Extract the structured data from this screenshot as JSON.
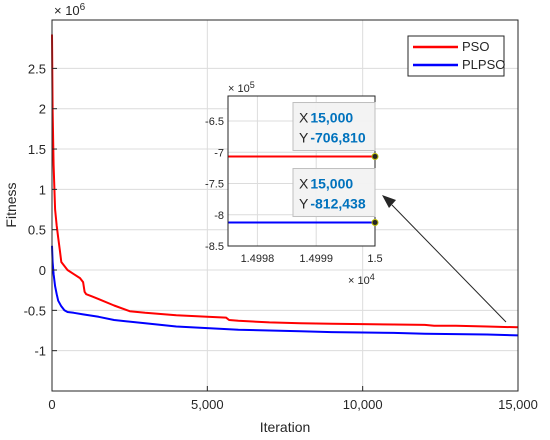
{
  "chart_data": {
    "type": "line",
    "xlabel": "Iteration",
    "ylabel": "Fitness",
    "xlim": [
      0,
      15000
    ],
    "ylim": [
      -1.5,
      3.1
    ],
    "y_exponent_label": "× 10^6",
    "x_ticks": [
      {
        "value": 0,
        "label": "0"
      },
      {
        "value": 5000,
        "label": "5,000"
      },
      {
        "value": 10000,
        "label": "10,000"
      },
      {
        "value": 15000,
        "label": "15,000"
      }
    ],
    "y_ticks": [
      {
        "value": 2.5,
        "label": "2.5"
      },
      {
        "value": 2,
        "label": "2"
      },
      {
        "value": 1.5,
        "label": "1.5"
      },
      {
        "value": 1,
        "label": "1"
      },
      {
        "value": 0.5,
        "label": "0.5"
      },
      {
        "value": 0,
        "label": "0"
      },
      {
        "value": -0.5,
        "label": "-0.5"
      },
      {
        "value": -1,
        "label": "-1"
      }
    ],
    "grid": true,
    "legend_position": "top-right",
    "series": [
      {
        "name": "PSO",
        "color": "#ff0000",
        "x": [
          0,
          20,
          50,
          100,
          150,
          200,
          250,
          300,
          400,
          500,
          700,
          900,
          1000,
          1050,
          1100,
          1300,
          1500,
          2000,
          2500,
          3000,
          4000,
          5000,
          5600,
          5700,
          6000,
          7000,
          8000,
          9000,
          10000,
          11000,
          12000,
          12300,
          13000,
          14000,
          15000
        ],
        "values": [
          2.92,
          2.0,
          1.3,
          0.75,
          0.55,
          0.4,
          0.25,
          0.1,
          0.05,
          0.0,
          -0.05,
          -0.1,
          -0.15,
          -0.27,
          -0.3,
          -0.33,
          -0.36,
          -0.44,
          -0.51,
          -0.53,
          -0.56,
          -0.58,
          -0.59,
          -0.62,
          -0.63,
          -0.65,
          -0.66,
          -0.665,
          -0.67,
          -0.675,
          -0.68,
          -0.69,
          -0.69,
          -0.7,
          -0.71
        ]
      },
      {
        "name": "PLPSO",
        "color": "#0000ff",
        "x": [
          0,
          20,
          50,
          100,
          150,
          200,
          300,
          400,
          500,
          700,
          1000,
          1500,
          2000,
          3000,
          4000,
          5000,
          6000,
          7000,
          8000,
          9000,
          10000,
          11000,
          12000,
          13000,
          14000,
          15000
        ],
        "values": [
          0.3,
          0.1,
          -0.05,
          -0.2,
          -0.3,
          -0.38,
          -0.45,
          -0.5,
          -0.52,
          -0.53,
          -0.55,
          -0.58,
          -0.62,
          -0.66,
          -0.7,
          -0.72,
          -0.74,
          -0.75,
          -0.76,
          -0.77,
          -0.775,
          -0.78,
          -0.79,
          -0.795,
          -0.8,
          -0.81
        ]
      }
    ],
    "inset": {
      "xlim": [
        1.49975,
        1.5
      ],
      "ylim": [
        -8.5,
        -6.1
      ],
      "y_exponent_label": "× 10^5",
      "x_exponent_label": "× 10^4",
      "x_ticks": [
        {
          "value": 1.4998,
          "label": "1.4998"
        },
        {
          "value": 1.4999,
          "label": "1.4999"
        },
        {
          "value": 1.5,
          "label": "1.5"
        }
      ],
      "y_ticks": [
        {
          "value": -6.5,
          "label": "-6.5"
        },
        {
          "value": -7,
          "label": "-7"
        },
        {
          "value": -7.5,
          "label": "-7.5"
        },
        {
          "value": -8,
          "label": "-8"
        },
        {
          "value": -8.5,
          "label": "-8.5"
        }
      ],
      "series": [
        {
          "name": "PSO",
          "color": "#ff0000",
          "y": -7.0681
        },
        {
          "name": "PLPSO",
          "color": "#0000ff",
          "y": -8.12438
        }
      ],
      "datatips": [
        {
          "x_key": "X",
          "x_value": "15,000",
          "y_key": "Y",
          "y_value": "-706,810",
          "point_x": 1.5,
          "point_y": -7.0681
        },
        {
          "x_key": "X",
          "x_value": "15,000",
          "y_key": "Y",
          "y_value": "-812,438",
          "point_x": 1.5,
          "point_y": -8.12438
        }
      ]
    }
  }
}
